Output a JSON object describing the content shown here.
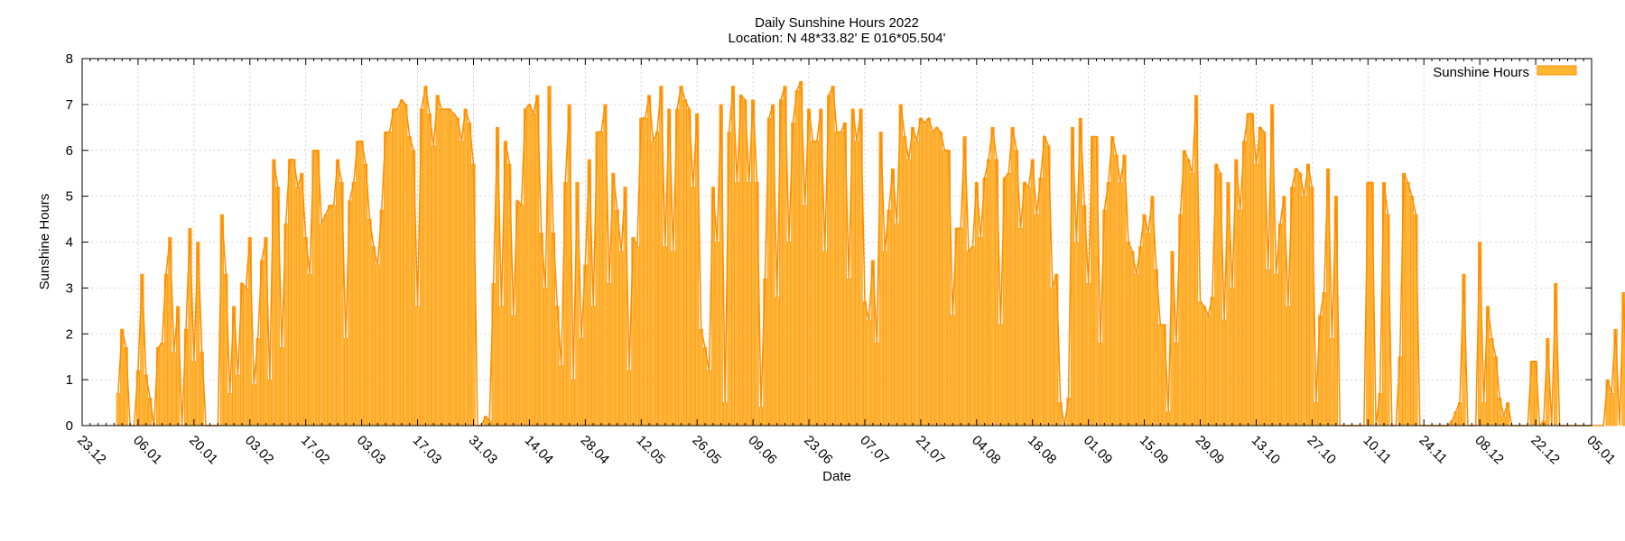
{
  "chart_data": {
    "type": "bar",
    "title": "Daily Sunshine Hours 2022",
    "subtitle": "Location: N 48*33.82'  E 016*05.504'",
    "xlabel": "Date",
    "ylabel": "Sunshine Hours",
    "legend": {
      "label": "Sunshine Hours",
      "position": "top-right"
    },
    "x_start": "2022-01-01",
    "xlim": [
      "2021-12-23",
      "2023-01-05"
    ],
    "ylim": [
      0,
      8
    ],
    "y_ticks": [
      "0",
      "1",
      "2",
      "3",
      "4",
      "5",
      "6",
      "7",
      "8"
    ],
    "x_ticks": [
      "23.12",
      "06.01",
      "20.01",
      "03.02",
      "17.02",
      "03.03",
      "17.03",
      "31.03",
      "14.04",
      "28.04",
      "12.05",
      "26.05",
      "09.06",
      "23.06",
      "07.07",
      "21.07",
      "04.08",
      "18.08",
      "01.09",
      "15.09",
      "29.09",
      "13.10",
      "27.10",
      "10.11",
      "24.11",
      "08.12",
      "22.12",
      "05.01"
    ],
    "grid": true,
    "colors": {
      "bar_fill": "#ffb733",
      "bar_line": "#ff8c00",
      "grid": "#c8c8c8"
    },
    "values": [
      0.7,
      2.1,
      1.7,
      0,
      0,
      1.2,
      3.3,
      1.1,
      0.6,
      0,
      1.7,
      1.8,
      3.3,
      4.1,
      1.6,
      2.6,
      0,
      2.1,
      4.3,
      1.4,
      4.0,
      1.6,
      0,
      0,
      0,
      0,
      4.6,
      3.3,
      0.7,
      2.6,
      1.1,
      3.1,
      3.0,
      4.1,
      0.9,
      1.9,
      3.6,
      4.1,
      1.0,
      5.8,
      5.2,
      1.7,
      4.4,
      5.8,
      5.8,
      5.2,
      5.5,
      4.1,
      3.3,
      6.0,
      6.0,
      4.4,
      4.6,
      4.8,
      4.8,
      5.8,
      5.3,
      1.9,
      4.9,
      5.3,
      6.2,
      6.2,
      5.7,
      4.5,
      3.9,
      3.5,
      4.7,
      6.4,
      6.4,
      6.9,
      6.9,
      7.1,
      7.0,
      6.3,
      6.0,
      2.6,
      6.9,
      7.4,
      6.8,
      6.1,
      7.2,
      6.9,
      6.9,
      6.9,
      6.8,
      6.7,
      6.2,
      6.9,
      6.6,
      5.7,
      0,
      0,
      0.2,
      0.1,
      3.1,
      6.5,
      2.6,
      6.2,
      5.7,
      2.4,
      4.9,
      4.8,
      6.9,
      7.0,
      6.8,
      7.2,
      4.2,
      3.0,
      7.4,
      4.2,
      2.6,
      1.3,
      5.3,
      7.0,
      1.0,
      5.3,
      1.9,
      3.5,
      5.8,
      2.6,
      6.4,
      6.4,
      7.0,
      3.1,
      5.5,
      4.7,
      3.8,
      5.2,
      1.2,
      4.1,
      3.9,
      6.7,
      6.7,
      7.2,
      6.2,
      6.4,
      7.4,
      3.9,
      6.9,
      3.8,
      6.9,
      7.4,
      7.1,
      6.9,
      5.2,
      6.8,
      2.1,
      1.7,
      1.2,
      5.2,
      4.0,
      7.0,
      0.5,
      6.4,
      7.4,
      5.3,
      7.2,
      7.1,
      5.3,
      7.1,
      5.3,
      0.4,
      3.2,
      6.7,
      7.0,
      2.8,
      7.1,
      7.4,
      4.0,
      6.6,
      7.3,
      7.5,
      4.8,
      6.9,
      6.2,
      6.2,
      6.9,
      3.8,
      7.2,
      7.4,
      6.4,
      6.4,
      6.6,
      3.2,
      6.9,
      6.2,
      6.9,
      2.7,
      2.3,
      3.6,
      1.8,
      6.4,
      3.8,
      4.7,
      5.6,
      4.4,
      7.0,
      6.3,
      5.8,
      6.5,
      6.2,
      6.7,
      6.6,
      6.7,
      6.4,
      6.5,
      6.4,
      6.0,
      6.0,
      2.4,
      4.3,
      4.3,
      6.3,
      3.8,
      3.9,
      5.3,
      4.1,
      5.4,
      5.8,
      6.5,
      5.8,
      2.2,
      5.4,
      5.5,
      6.5,
      6.0,
      4.3,
      5.3,
      5.2,
      5.8,
      4.6,
      5.4,
      6.3,
      6.1,
      3.0,
      3.3,
      0.5,
      0,
      0.6,
      6.5,
      4.0,
      6.7,
      4.8,
      3.1,
      6.3,
      6.3,
      1.8,
      4.7,
      5.3,
      6.3,
      5.9,
      5.3,
      5.9,
      4.0,
      3.8,
      3.3,
      3.9,
      4.6,
      4.2,
      5.0,
      3.4,
      2.2,
      2.2,
      0.3,
      3.8,
      1.8,
      4.6,
      6.0,
      5.8,
      5.5,
      7.2,
      2.7,
      2.6,
      2.4,
      2.8,
      5.7,
      5.5,
      2.3,
      5.3,
      3.0,
      5.8,
      4.7,
      6.2,
      6.8,
      6.8,
      5.7,
      6.5,
      6.4,
      3.4,
      7.0,
      3.3,
      4.4,
      5.0,
      2.6,
      5.2,
      5.6,
      5.5,
      5.0,
      5.7,
      5.2,
      0.5,
      2.4,
      2.9,
      5.6,
      1.9,
      5.0,
      0,
      0,
      0,
      0,
      0,
      0,
      0,
      5.3,
      5.3,
      0,
      0.7,
      5.3,
      4.6,
      0,
      0,
      1.5,
      5.5,
      5.3,
      5.0,
      4.6,
      0,
      0,
      0,
      0,
      0,
      0,
      0,
      0,
      0.1,
      0.3,
      0.5,
      3.3,
      0,
      0,
      0,
      4.0,
      0.5,
      2.6,
      1.9,
      1.5,
      0.6,
      0.2,
      0.5,
      0,
      0,
      0,
      0,
      0,
      1.4,
      1.4,
      0,
      0.1,
      1.9,
      0,
      3.1,
      0,
      0,
      0,
      0,
      0,
      0,
      0,
      0,
      0,
      0,
      0,
      0,
      1.0,
      0.7,
      2.1,
      0,
      2.9,
      0.5,
      1.1,
      2.4,
      1.3
    ]
  }
}
